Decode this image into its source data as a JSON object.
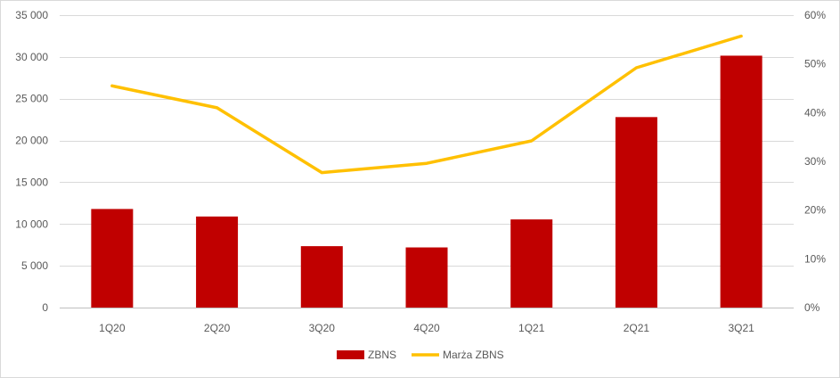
{
  "chart_data": {
    "type": "bar",
    "categories": [
      "1Q20",
      "2Q20",
      "3Q20",
      "4Q20",
      "1Q21",
      "2Q21",
      "3Q21"
    ],
    "series": [
      {
        "name": "ZBNS",
        "type": "bar",
        "axis": "left",
        "color": "#c00000",
        "values": [
          11800,
          10900,
          7350,
          7200,
          10550,
          22800,
          30150
        ]
      },
      {
        "name": "Marża ZBNS",
        "type": "line",
        "axis": "right",
        "color": "#ffc000",
        "values": [
          0.455,
          0.41,
          0.277,
          0.296,
          0.342,
          0.492,
          0.557
        ]
      }
    ],
    "y_left": {
      "ylim": [
        0,
        35000
      ],
      "ticks": [
        0,
        5000,
        10000,
        15000,
        20000,
        25000,
        30000,
        35000
      ],
      "tick_labels": [
        "0",
        "5 000",
        "10 000",
        "15 000",
        "20 000",
        "25 000",
        "30 000",
        "35 000"
      ]
    },
    "y_right": {
      "ylim": [
        0,
        0.6
      ],
      "ticks": [
        0,
        0.1,
        0.2,
        0.3,
        0.4,
        0.5,
        0.6
      ],
      "tick_labels": [
        "0%",
        "10%",
        "20%",
        "30%",
        "40%",
        "50%",
        "60%"
      ]
    },
    "title": "",
    "xlabel": "",
    "ylabel": "",
    "grid": true,
    "legend": "bottom-center",
    "legend_items": [
      "ZBNS",
      "Marża ZBNS"
    ]
  }
}
